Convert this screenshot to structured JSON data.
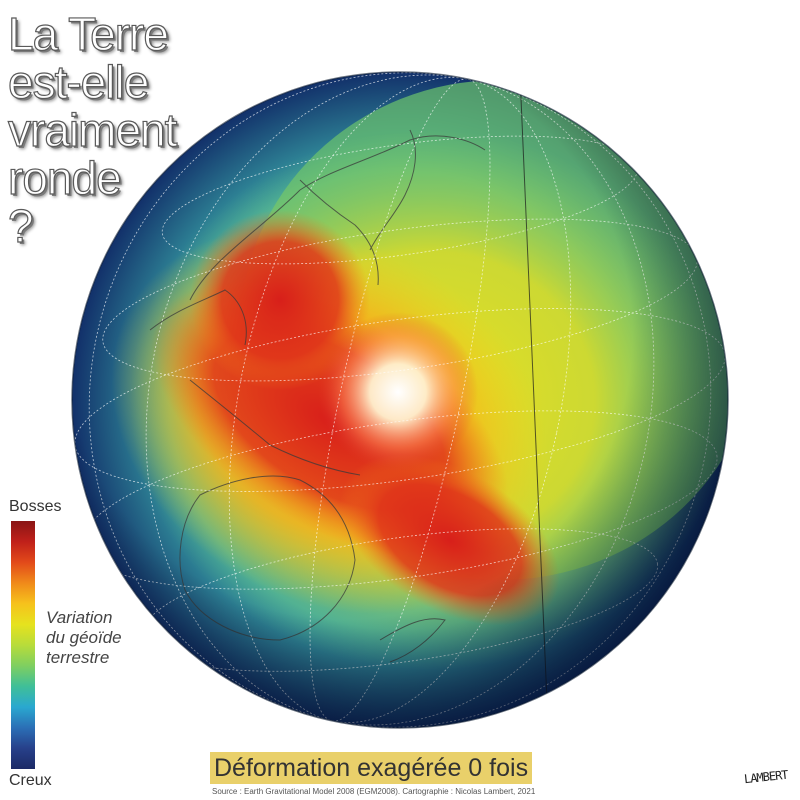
{
  "title_lines": [
    "La Terre",
    "est-elle",
    "vraiment",
    "ronde",
    "?"
  ],
  "legend": {
    "top_label": "Bosses",
    "bottom_label": "Creux",
    "caption_lines": [
      "Variation",
      "du géoïde",
      "terrestre"
    ],
    "gradient_colors": [
      "#8a1515",
      "#c0201a",
      "#e24a1a",
      "#f08a1a",
      "#f6c21c",
      "#e6e21e",
      "#b8dc3a",
      "#7fcf60",
      "#3fbf98",
      "#2aa8d0",
      "#2b6fb6",
      "#27408a",
      "#1c2a66"
    ]
  },
  "globe_colors": {
    "hot_center": "#ffffff",
    "high": "#d81f1a",
    "mid_high": "#f3951c",
    "mid": "#e9e11f",
    "mid_low": "#5fc27a",
    "low": "#2a8fc0",
    "lowest": "#12306a"
  },
  "deformation_label": "Déformation exagérée 0 fois",
  "source": "Source : Earth Gravitational Model 2008 (EGM2008). Cartographie : Nicolas Lambert, 2021",
  "signature": "LAMBERT"
}
